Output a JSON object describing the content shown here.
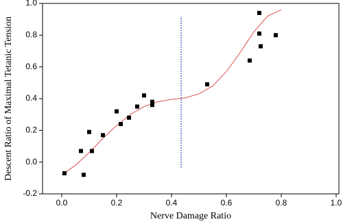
{
  "chart_data": {
    "type": "scatter",
    "x_label": "Nerve Damage Ratio",
    "y_label": "Descent Ratio of Maximal Tetanic Tension",
    "xlim": [
      -0.07,
      1.01
    ],
    "ylim": [
      -0.2,
      1.0
    ],
    "xticks": [
      {
        "value": 0,
        "label": "0.0"
      },
      0.2,
      0.4,
      0.6,
      0.8,
      {
        "value": 1,
        "label": "1.0"
      }
    ],
    "yticks": [
      -0.2,
      {
        "value": 0,
        "label": "0.0"
      },
      0.2,
      0.4,
      0.6,
      0.8,
      {
        "value": 1,
        "label": "1.0"
      }
    ],
    "points": {
      "color": "#000000",
      "x": [
        0.01,
        0.07,
        0.08,
        0.1,
        0.11,
        0.15,
        0.2,
        0.215,
        0.245,
        0.275,
        0.3,
        0.33,
        0.33,
        0.53,
        0.685,
        0.72,
        0.72,
        0.725,
        0.78
      ],
      "values": [
        -0.07,
        0.07,
        -0.08,
        0.19,
        0.07,
        0.17,
        0.32,
        0.24,
        0.28,
        0.35,
        0.42,
        0.36,
        0.38,
        0.49,
        0.64,
        0.94,
        0.81,
        0.73,
        0.8
      ]
    },
    "curve": {
      "color": "#e05050",
      "x": [
        0,
        0.05,
        0.1,
        0.15,
        0.2,
        0.25,
        0.3,
        0.35,
        0.4,
        0.45,
        0.5,
        0.55,
        0.6,
        0.65,
        0.7,
        0.75,
        0.8
      ],
      "values": [
        -0.08,
        -0.02,
        0.06,
        0.15,
        0.23,
        0.3,
        0.35,
        0.38,
        0.395,
        0.405,
        0.43,
        0.48,
        0.57,
        0.69,
        0.82,
        0.92,
        0.96
      ]
    },
    "divider": {
      "color": "#1f3fa0",
      "x": 0.435,
      "y": [
        -0.035,
        0.92
      ]
    }
  }
}
